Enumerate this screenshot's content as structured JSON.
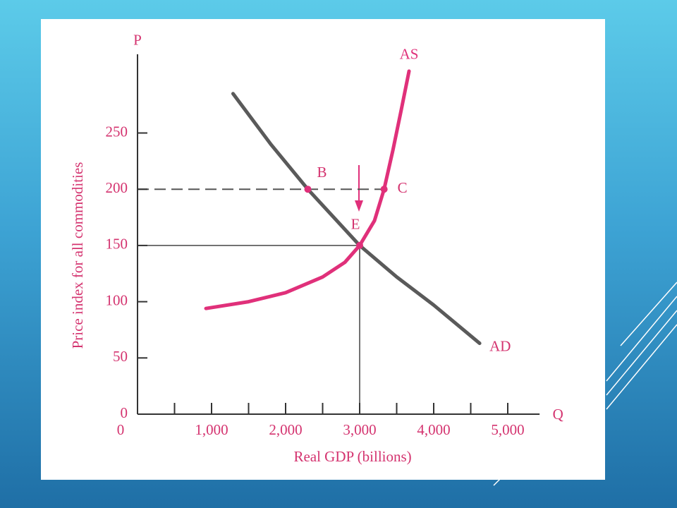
{
  "chart_data": {
    "type": "line",
    "x_axis_symbol": "Q",
    "y_axis_symbol": "P",
    "xlabel": "Real GDP (billions)",
    "ylabel": "Price index for all commodities",
    "xlim": [
      0,
      5430
    ],
    "ylim": [
      0,
      320
    ],
    "xticks": [
      0,
      {
        "value": 1000,
        "label": "1,000"
      },
      {
        "value": 2000,
        "label": "2,000"
      },
      {
        "value": 3000,
        "label": "3,000"
      },
      {
        "value": 4000,
        "label": "4,000"
      },
      {
        "value": 5000,
        "label": "5,000"
      }
    ],
    "xminor_ticks": [
      500,
      1500,
      2500,
      3500,
      4500
    ],
    "yticks": [
      0,
      50,
      100,
      150,
      200,
      250
    ],
    "series": [
      {
        "name": "AD",
        "color": "#5a5a5a",
        "x": [
          1290,
          1800,
          2300,
          3000,
          3500,
          4000,
          4620
        ],
        "y": [
          285,
          240,
          200,
          150,
          122,
          97,
          63
        ]
      },
      {
        "name": "AS",
        "color": "#e0307a",
        "x": [
          924,
          1500,
          2000,
          2500,
          2800,
          3000,
          3200,
          3330,
          3450,
          3560,
          3667
        ],
        "y": [
          94,
          100,
          108,
          122,
          135,
          150,
          172,
          200,
          235,
          270,
          305
        ]
      }
    ],
    "points": [
      {
        "label": "B",
        "x": 2300,
        "y": 200
      },
      {
        "label": "C",
        "x": 3330,
        "y": 200
      },
      {
        "label": "E",
        "x": 3000,
        "y": 150
      }
    ]
  }
}
